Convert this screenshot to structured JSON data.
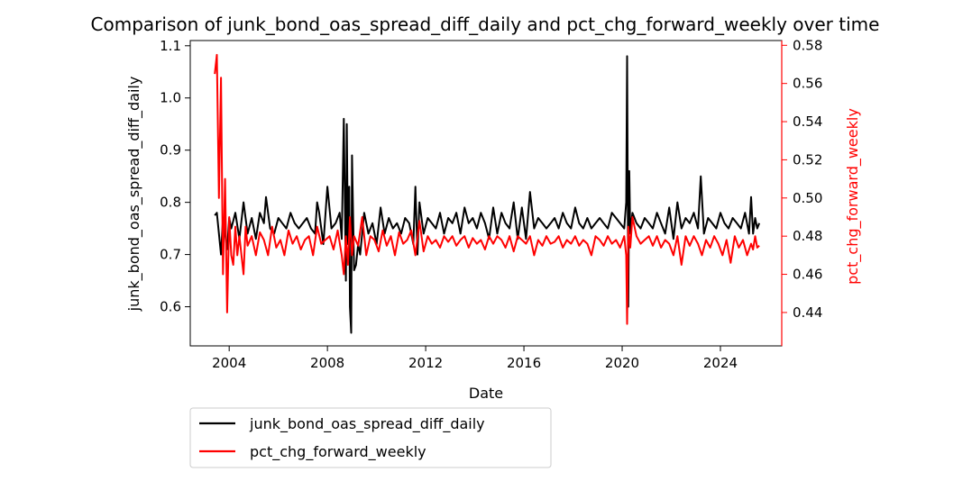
{
  "chart_data": {
    "type": "line",
    "title": "Comparison of junk_bond_oas_spread_diff_daily and pct_chg_forward_weekly over time",
    "xlabel": "Date",
    "ylabel": "junk_bond_oas_spread_diff_daily",
    "y2label": "pct_chg_forward_weekly",
    "xlim": [
      "2002-06-01",
      "2026-07-01"
    ],
    "ylim": [
      0.525,
      1.11
    ],
    "y2lim": [
      0.4225,
      0.5825
    ],
    "xticks": [
      "2004",
      "2008",
      "2012",
      "2016",
      "2020",
      "2024"
    ],
    "yticks": [
      0.6,
      0.7,
      0.8,
      0.9,
      1.0,
      1.1
    ],
    "y2ticks": [
      0.44,
      0.46,
      0.48,
      0.5,
      0.52,
      0.54,
      0.56,
      0.58
    ],
    "colors": {
      "primary": "#000000",
      "secondary": "#ff0000",
      "secondary_axis": "#ff0000"
    },
    "legend_position": "below-left",
    "grid": false,
    "series": [
      {
        "name": "junk_bond_oas_spread_diff_daily",
        "axis": "left",
        "color": "#000000",
        "x": [
          "2003-06-01",
          "2003-07-01",
          "2003-08-01",
          "2003-09-01",
          "2003-10-01",
          "2003-11-01",
          "2003-12-01",
          "2004-01-01",
          "2004-02-01",
          "2004-04-01",
          "2004-06-01",
          "2004-08-01",
          "2004-10-01",
          "2004-12-01",
          "2005-02-01",
          "2005-04-01",
          "2005-06-01",
          "2005-07-01",
          "2005-09-01",
          "2005-11-01",
          "2006-01-01",
          "2006-03-01",
          "2006-05-01",
          "2006-07-01",
          "2006-09-01",
          "2006-11-01",
          "2007-01-01",
          "2007-03-01",
          "2007-05-01",
          "2007-07-01",
          "2007-08-01",
          "2007-09-01",
          "2007-11-01",
          "2008-01-01",
          "2008-03-01",
          "2008-05-01",
          "2008-07-01",
          "2008-08-01",
          "2008-09-01",
          "2008-10-01",
          "2008-10-15",
          "2008-11-01",
          "2008-11-20",
          "2008-12-01",
          "2008-12-20",
          "2009-01-01",
          "2009-02-01",
          "2009-03-01",
          "2009-04-01",
          "2009-05-01",
          "2009-07-01",
          "2009-09-01",
          "2009-11-01",
          "2010-01-01",
          "2010-03-01",
          "2010-05-01",
          "2010-07-01",
          "2010-09-01",
          "2010-11-01",
          "2011-01-01",
          "2011-03-01",
          "2011-05-01",
          "2011-07-01",
          "2011-08-01",
          "2011-09-01",
          "2011-10-01",
          "2011-12-01",
          "2012-02-01",
          "2012-04-01",
          "2012-06-01",
          "2012-08-01",
          "2012-10-01",
          "2012-12-01",
          "2013-02-01",
          "2013-04-01",
          "2013-06-01",
          "2013-08-01",
          "2013-10-01",
          "2013-12-01",
          "2014-02-01",
          "2014-04-01",
          "2014-06-01",
          "2014-08-01",
          "2014-10-01",
          "2014-12-01",
          "2015-02-01",
          "2015-04-01",
          "2015-06-01",
          "2015-08-01",
          "2015-10-01",
          "2015-12-01",
          "2016-02-01",
          "2016-04-01",
          "2016-06-01",
          "2016-08-01",
          "2016-10-01",
          "2016-12-01",
          "2017-02-01",
          "2017-04-01",
          "2017-06-01",
          "2017-08-01",
          "2017-10-01",
          "2017-12-01",
          "2018-02-01",
          "2018-04-01",
          "2018-06-01",
          "2018-08-01",
          "2018-10-01",
          "2018-12-01",
          "2019-02-01",
          "2019-04-01",
          "2019-06-01",
          "2019-08-01",
          "2019-10-01",
          "2019-12-01",
          "2020-02-01",
          "2020-03-01",
          "2020-03-15",
          "2020-04-01",
          "2020-04-15",
          "2020-05-01",
          "2020-06-01",
          "2020-08-01",
          "2020-10-01",
          "2020-12-01",
          "2021-02-01",
          "2021-04-01",
          "2021-06-01",
          "2021-08-01",
          "2021-10-01",
          "2021-12-01",
          "2022-02-01",
          "2022-04-01",
          "2022-06-01",
          "2022-08-01",
          "2022-10-01",
          "2022-12-01",
          "2023-02-01",
          "2023-03-15",
          "2023-05-01",
          "2023-07-01",
          "2023-09-01",
          "2023-11-01",
          "2024-01-01",
          "2024-03-01",
          "2024-05-01",
          "2024-07-01",
          "2024-09-01",
          "2024-11-01",
          "2025-01-01",
          "2025-03-01",
          "2025-04-01",
          "2025-05-01",
          "2025-06-01",
          "2025-07-01",
          "2025-08-01"
        ],
        "values": [
          0.775,
          0.78,
          0.74,
          0.7,
          0.77,
          0.74,
          0.71,
          0.77,
          0.75,
          0.78,
          0.73,
          0.8,
          0.74,
          0.77,
          0.73,
          0.78,
          0.76,
          0.81,
          0.75,
          0.74,
          0.77,
          0.76,
          0.75,
          0.78,
          0.76,
          0.75,
          0.76,
          0.77,
          0.75,
          0.74,
          0.8,
          0.78,
          0.72,
          0.83,
          0.75,
          0.76,
          0.78,
          0.73,
          0.96,
          0.65,
          0.95,
          0.72,
          0.83,
          0.6,
          0.55,
          0.89,
          0.67,
          0.68,
          0.72,
          0.7,
          0.78,
          0.74,
          0.76,
          0.72,
          0.79,
          0.74,
          0.77,
          0.75,
          0.76,
          0.74,
          0.77,
          0.76,
          0.72,
          0.83,
          0.7,
          0.8,
          0.74,
          0.77,
          0.76,
          0.75,
          0.78,
          0.74,
          0.77,
          0.76,
          0.78,
          0.74,
          0.79,
          0.76,
          0.77,
          0.75,
          0.78,
          0.76,
          0.73,
          0.79,
          0.74,
          0.78,
          0.76,
          0.75,
          0.8,
          0.73,
          0.79,
          0.73,
          0.82,
          0.75,
          0.77,
          0.76,
          0.75,
          0.76,
          0.77,
          0.75,
          0.78,
          0.76,
          0.75,
          0.79,
          0.76,
          0.75,
          0.77,
          0.75,
          0.76,
          0.77,
          0.76,
          0.75,
          0.78,
          0.77,
          0.76,
          0.75,
          0.8,
          1.08,
          0.6,
          0.86,
          0.74,
          0.78,
          0.76,
          0.75,
          0.77,
          0.76,
          0.75,
          0.78,
          0.76,
          0.74,
          0.79,
          0.73,
          0.8,
          0.75,
          0.77,
          0.76,
          0.78,
          0.75,
          0.85,
          0.74,
          0.77,
          0.76,
          0.75,
          0.78,
          0.76,
          0.75,
          0.77,
          0.76,
          0.75,
          0.78,
          0.74,
          0.81,
          0.74,
          0.77,
          0.75,
          0.76
        ]
      },
      {
        "name": "pct_chg_forward_weekly",
        "axis": "right",
        "color": "#ff0000",
        "x": [
          "2003-06-01",
          "2003-07-01",
          "2003-08-01",
          "2003-09-01",
          "2003-10-01",
          "2003-11-01",
          "2003-12-01",
          "2004-01-01",
          "2004-02-01",
          "2004-03-01",
          "2004-04-01",
          "2004-05-01",
          "2004-06-01",
          "2004-08-01",
          "2004-09-01",
          "2004-10-01",
          "2004-12-01",
          "2005-02-01",
          "2005-04-01",
          "2005-06-01",
          "2005-08-01",
          "2005-10-01",
          "2005-12-01",
          "2006-02-01",
          "2006-04-01",
          "2006-06-01",
          "2006-08-01",
          "2006-10-01",
          "2006-12-01",
          "2007-02-01",
          "2007-04-01",
          "2007-06-01",
          "2007-08-01",
          "2007-10-01",
          "2007-12-01",
          "2008-02-01",
          "2008-04-01",
          "2008-06-01",
          "2008-08-01",
          "2008-09-01",
          "2008-10-01",
          "2008-11-01",
          "2008-12-01",
          "2009-01-01",
          "2009-02-01",
          "2009-04-01",
          "2009-06-01",
          "2009-08-01",
          "2009-10-01",
          "2009-12-01",
          "2010-02-01",
          "2010-04-01",
          "2010-06-01",
          "2010-08-01",
          "2010-10-01",
          "2010-12-01",
          "2011-02-01",
          "2011-04-01",
          "2011-06-01",
          "2011-08-01",
          "2011-10-01",
          "2011-12-01",
          "2012-02-01",
          "2012-04-01",
          "2012-06-01",
          "2012-08-01",
          "2012-10-01",
          "2012-12-01",
          "2013-02-01",
          "2013-04-01",
          "2013-06-01",
          "2013-08-01",
          "2013-10-01",
          "2013-12-01",
          "2014-02-01",
          "2014-04-01",
          "2014-06-01",
          "2014-08-01",
          "2014-10-01",
          "2014-12-01",
          "2015-02-01",
          "2015-04-01",
          "2015-06-01",
          "2015-08-01",
          "2015-10-01",
          "2015-12-01",
          "2016-02-01",
          "2016-04-01",
          "2016-06-01",
          "2016-08-01",
          "2016-10-01",
          "2016-12-01",
          "2017-02-01",
          "2017-04-01",
          "2017-06-01",
          "2017-08-01",
          "2017-10-01",
          "2017-12-01",
          "2018-02-01",
          "2018-04-01",
          "2018-06-01",
          "2018-08-01",
          "2018-10-01",
          "2018-12-01",
          "2019-02-01",
          "2019-04-01",
          "2019-06-01",
          "2019-08-01",
          "2019-10-01",
          "2019-12-01",
          "2020-02-01",
          "2020-03-01",
          "2020-03-15",
          "2020-04-01",
          "2020-05-01",
          "2020-06-01",
          "2020-08-01",
          "2020-10-01",
          "2020-12-01",
          "2021-02-01",
          "2021-04-01",
          "2021-06-01",
          "2021-08-01",
          "2021-10-01",
          "2021-12-01",
          "2022-02-01",
          "2022-04-01",
          "2022-06-01",
          "2022-08-01",
          "2022-10-01",
          "2022-12-01",
          "2023-02-01",
          "2023-04-01",
          "2023-06-01",
          "2023-08-01",
          "2023-10-01",
          "2023-12-01",
          "2024-02-01",
          "2024-04-01",
          "2024-06-01",
          "2024-08-01",
          "2024-10-01",
          "2024-12-01",
          "2025-02-01",
          "2025-04-01",
          "2025-05-01",
          "2025-06-01",
          "2025-07-01",
          "2025-08-01"
        ],
        "values": [
          0.565,
          0.575,
          0.5,
          0.563,
          0.46,
          0.51,
          0.44,
          0.49,
          0.47,
          0.465,
          0.485,
          0.47,
          0.48,
          0.46,
          0.485,
          0.475,
          0.48,
          0.47,
          0.482,
          0.478,
          0.47,
          0.485,
          0.474,
          0.478,
          0.47,
          0.483,
          0.476,
          0.48,
          0.473,
          0.478,
          0.48,
          0.47,
          0.485,
          0.476,
          0.478,
          0.48,
          0.473,
          0.483,
          0.47,
          0.46,
          0.48,
          0.465,
          0.49,
          0.47,
          0.48,
          0.475,
          0.49,
          0.47,
          0.48,
          0.478,
          0.472,
          0.483,
          0.475,
          0.48,
          0.47,
          0.482,
          0.476,
          0.478,
          0.483,
          0.47,
          0.488,
          0.472,
          0.48,
          0.476,
          0.478,
          0.474,
          0.48,
          0.477,
          0.48,
          0.475,
          0.478,
          0.48,
          0.474,
          0.479,
          0.476,
          0.478,
          0.473,
          0.48,
          0.476,
          0.48,
          0.478,
          0.474,
          0.48,
          0.472,
          0.48,
          0.478,
          0.476,
          0.48,
          0.47,
          0.478,
          0.475,
          0.48,
          0.476,
          0.477,
          0.48,
          0.474,
          0.478,
          0.476,
          0.48,
          0.475,
          0.478,
          0.476,
          0.47,
          0.48,
          0.478,
          0.475,
          0.48,
          0.476,
          0.478,
          0.474,
          0.48,
          0.47,
          0.434,
          0.485,
          0.474,
          0.49,
          0.48,
          0.476,
          0.478,
          0.48,
          0.475,
          0.48,
          0.474,
          0.478,
          0.476,
          0.47,
          0.48,
          0.465,
          0.48,
          0.475,
          0.48,
          0.476,
          0.47,
          0.478,
          0.474,
          0.48,
          0.476,
          0.47,
          0.478,
          0.466,
          0.48,
          0.474,
          0.478,
          0.47,
          0.476,
          0.473,
          0.48,
          0.474,
          0.475
        ]
      }
    ]
  }
}
